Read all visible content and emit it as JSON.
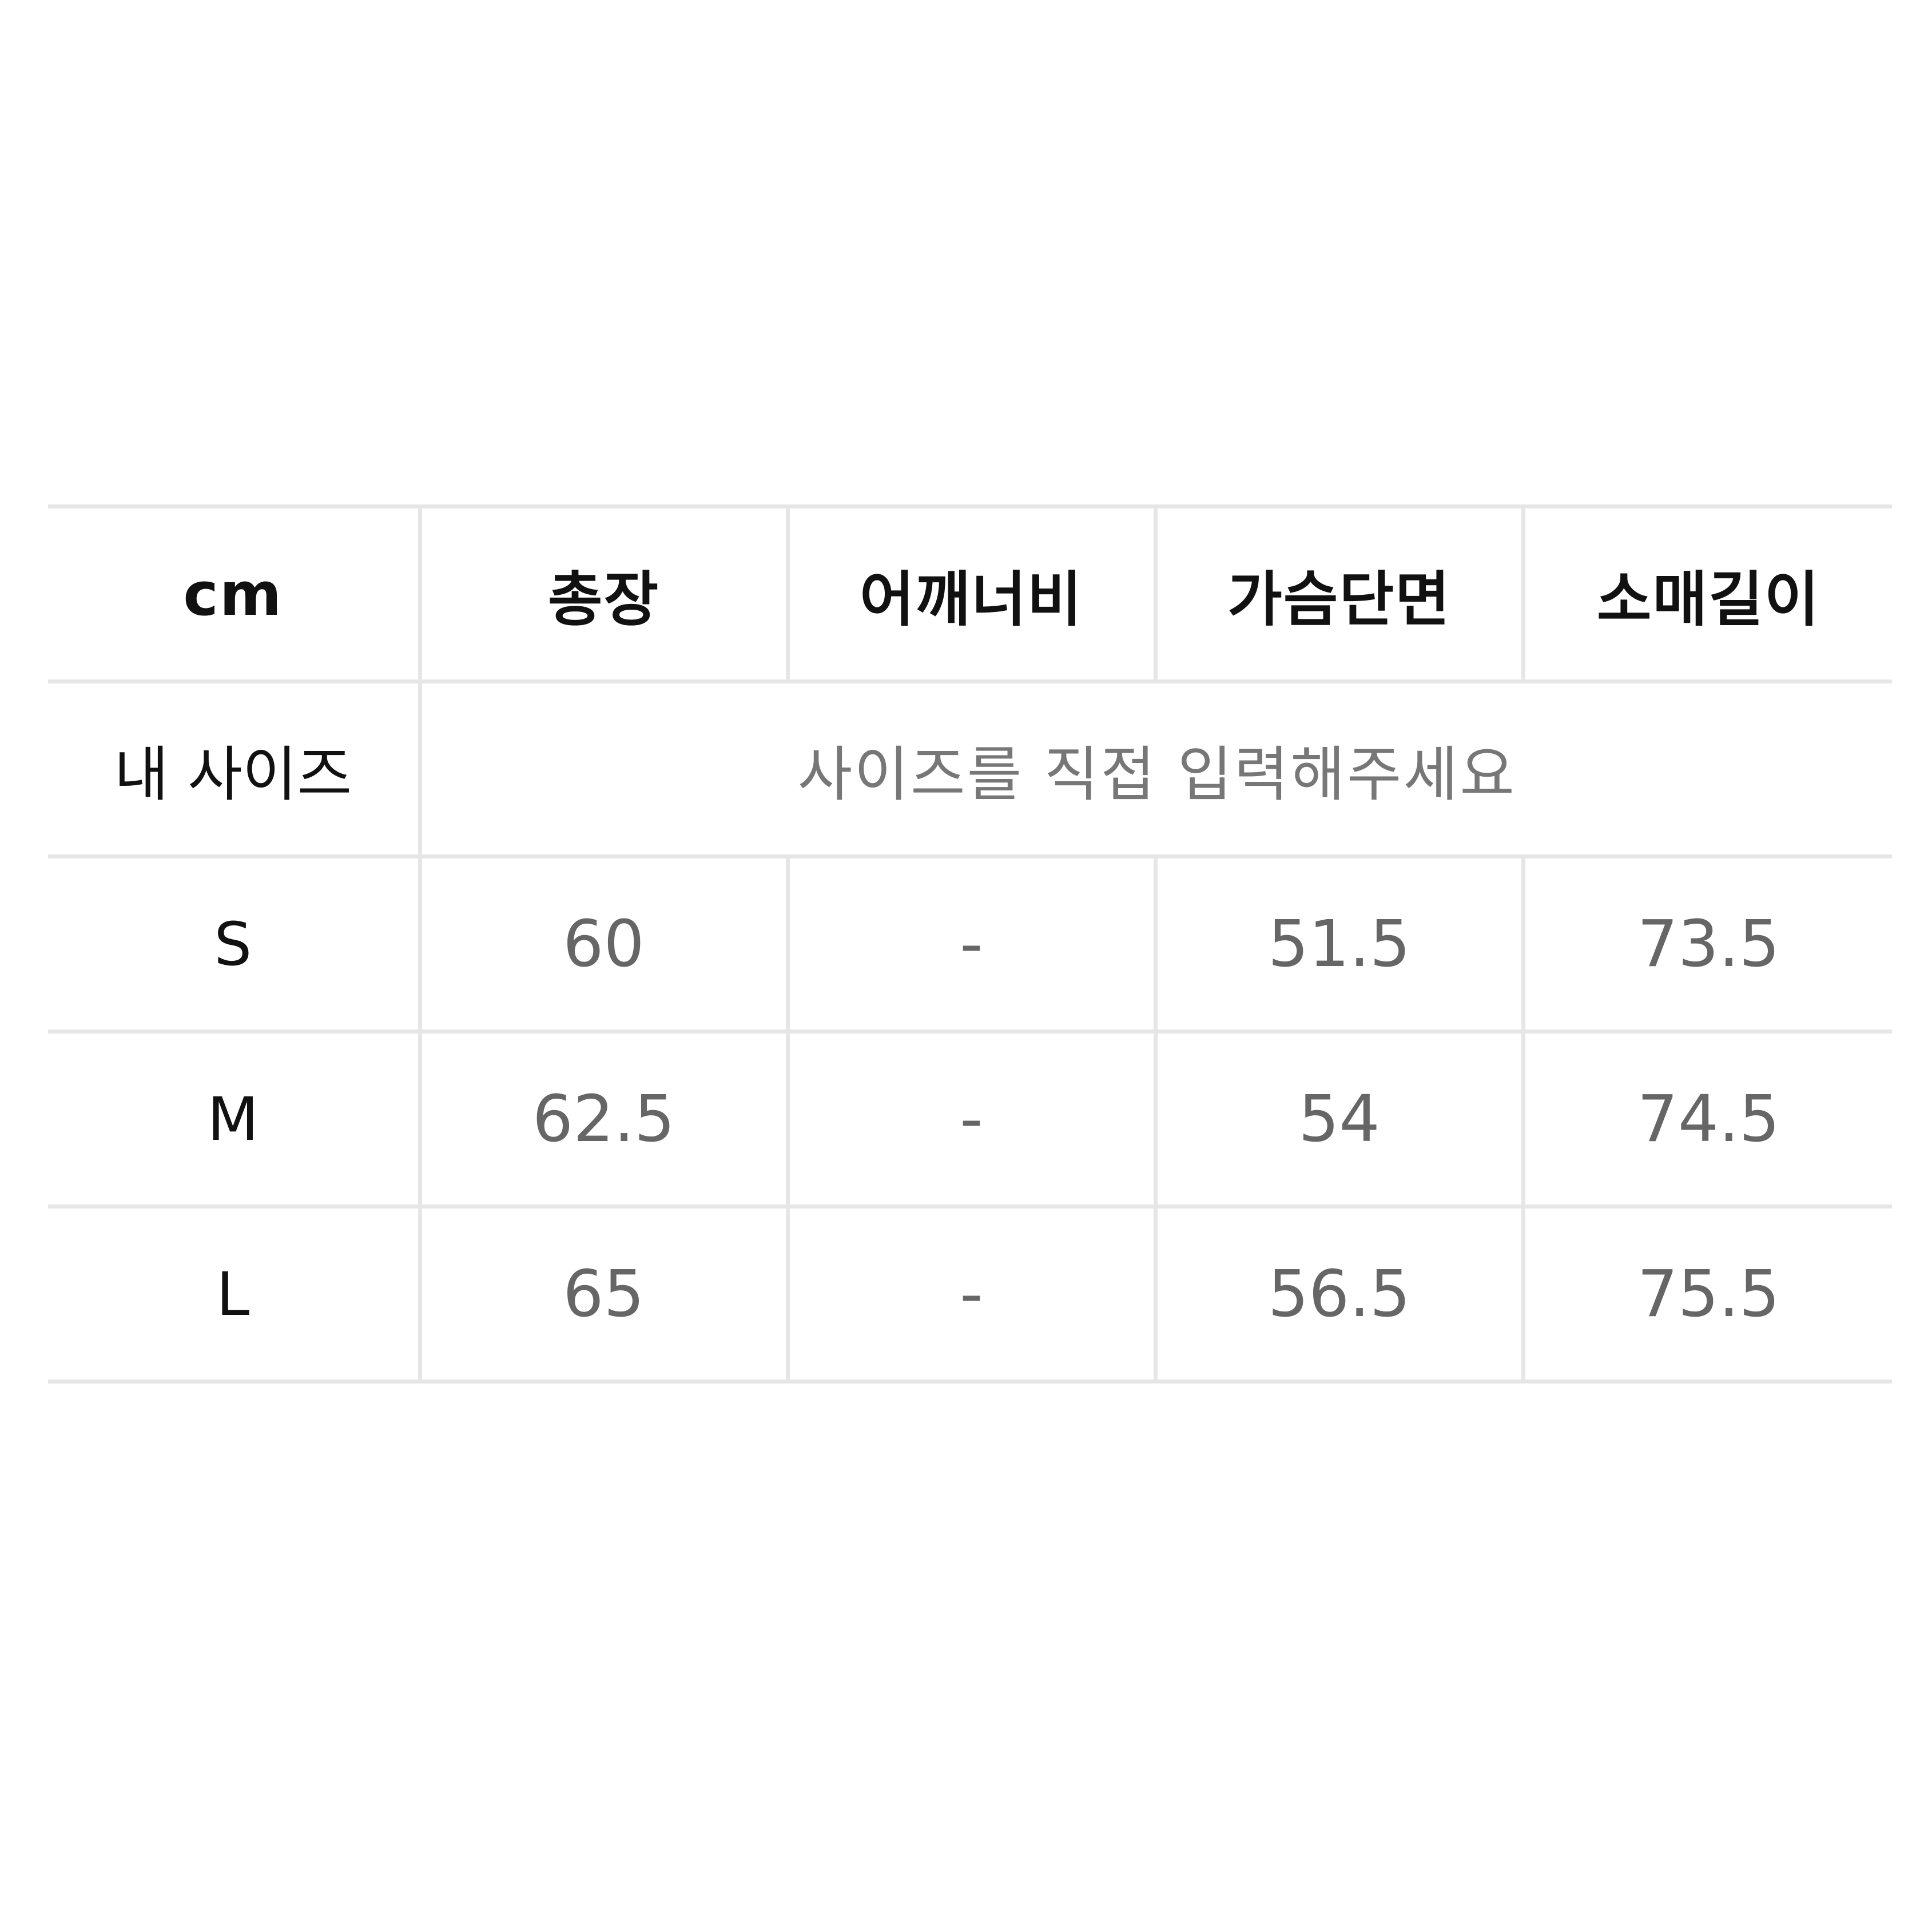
{
  "size_table": {
    "unit": "cm",
    "columns": [
      "총장",
      "어깨너비",
      "가슴단면",
      "소매길이"
    ],
    "my_size": {
      "label": "내 사이즈",
      "prompt": "사이즈를 직접 입력해주세요"
    },
    "rows": [
      {
        "size": "S",
        "values": [
          "60",
          "-",
          "51.5",
          "73.5"
        ]
      },
      {
        "size": "M",
        "values": [
          "62.5",
          "-",
          "54",
          "74.5"
        ]
      },
      {
        "size": "L",
        "values": [
          "65",
          "-",
          "56.5",
          "75.5"
        ]
      }
    ]
  }
}
